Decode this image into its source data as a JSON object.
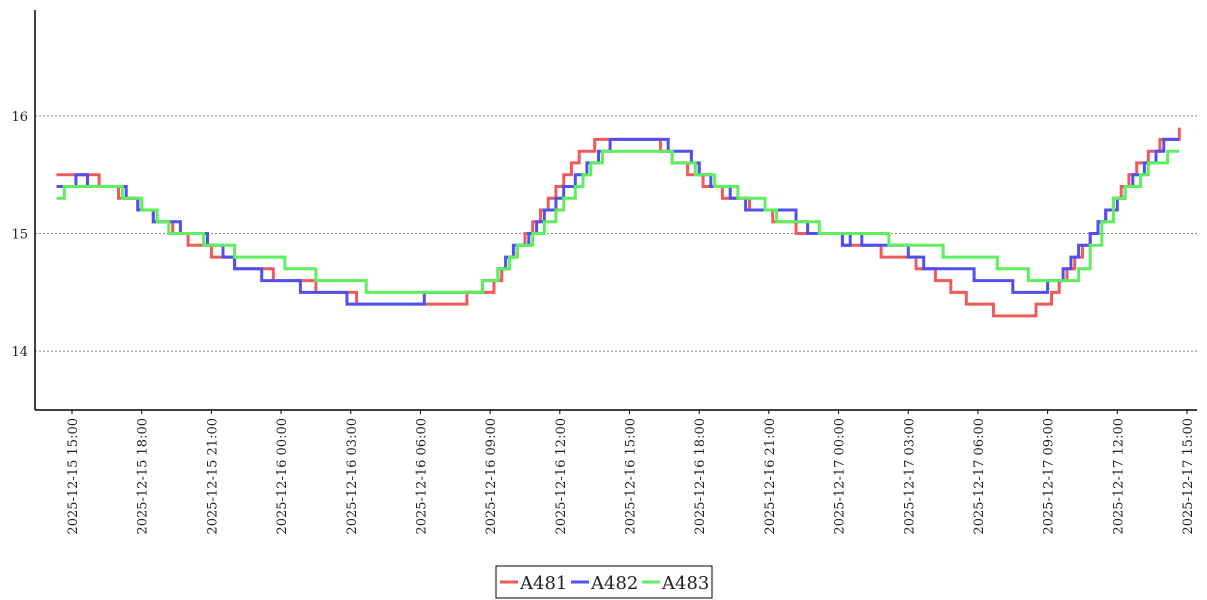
{
  "chart_data": {
    "type": "line",
    "step": true,
    "title": "",
    "xlabel": "",
    "ylabel": "",
    "ylim": [
      13.5,
      16.9
    ],
    "y_ticks": [
      14,
      15,
      16
    ],
    "y_tick_labels": [
      "14",
      "15",
      "16"
    ],
    "grid": "horizontal-dotted",
    "x_ticks": [
      "2025-12-15 15:00",
      "2025-12-15 18:00",
      "2025-12-15 21:00",
      "2025-12-16 00:00",
      "2025-12-16 03:00",
      "2025-12-16 06:00",
      "2025-12-16 09:00",
      "2025-12-16 12:00",
      "2025-12-16 15:00",
      "2025-12-16 18:00",
      "2025-12-16 21:00",
      "2025-12-17 00:00",
      "2025-12-17 03:00",
      "2025-12-17 06:00",
      "2025-12-17 09:00",
      "2025-12-17 12:00",
      "2025-12-17 15:00"
    ],
    "legend_position": "bottom-center",
    "series": [
      {
        "name": "A481",
        "color": "#f05a5a",
        "points": [
          [
            "2025-12-15 14:20",
            15.5
          ],
          [
            "2025-12-15 16:10",
            15.4
          ],
          [
            "2025-12-15 17:00",
            15.3
          ],
          [
            "2025-12-15 17:50",
            15.2
          ],
          [
            "2025-12-15 18:30",
            15.1
          ],
          [
            "2025-12-15 19:20",
            15.0
          ],
          [
            "2025-12-15 20:00",
            14.9
          ],
          [
            "2025-12-15 21:00",
            14.8
          ],
          [
            "2025-12-15 22:00",
            14.7
          ],
          [
            "2025-12-15 23:40",
            14.6
          ],
          [
            "2025-12-16 01:30",
            14.5
          ],
          [
            "2025-12-16 03:15",
            14.4
          ],
          [
            "2025-12-16 08:00",
            14.5
          ],
          [
            "2025-12-16 09:10",
            14.6
          ],
          [
            "2025-12-16 09:30",
            14.7
          ],
          [
            "2025-12-16 09:50",
            14.8
          ],
          [
            "2025-12-16 10:10",
            14.9
          ],
          [
            "2025-12-16 10:30",
            15.0
          ],
          [
            "2025-12-16 10:50",
            15.1
          ],
          [
            "2025-12-16 11:10",
            15.2
          ],
          [
            "2025-12-16 11:30",
            15.3
          ],
          [
            "2025-12-16 11:50",
            15.4
          ],
          [
            "2025-12-16 12:10",
            15.5
          ],
          [
            "2025-12-16 12:30",
            15.6
          ],
          [
            "2025-12-16 12:50",
            15.7
          ],
          [
            "2025-12-16 13:30",
            15.8
          ],
          [
            "2025-12-16 16:20",
            15.7
          ],
          [
            "2025-12-16 16:50",
            15.6
          ],
          [
            "2025-12-16 17:30",
            15.5
          ],
          [
            "2025-12-16 18:10",
            15.4
          ],
          [
            "2025-12-16 19:00",
            15.3
          ],
          [
            "2025-12-16 20:10",
            15.2
          ],
          [
            "2025-12-16 21:10",
            15.1
          ],
          [
            "2025-12-16 22:10",
            15.0
          ],
          [
            "2025-12-17 00:10",
            14.9
          ],
          [
            "2025-12-17 01:50",
            14.8
          ],
          [
            "2025-12-17 03:20",
            14.7
          ],
          [
            "2025-12-17 04:10",
            14.6
          ],
          [
            "2025-12-17 04:50",
            14.5
          ],
          [
            "2025-12-17 05:30",
            14.4
          ],
          [
            "2025-12-17 06:40",
            14.3
          ],
          [
            "2025-12-17 08:30",
            14.4
          ],
          [
            "2025-12-17 09:10",
            14.5
          ],
          [
            "2025-12-17 09:30",
            14.6
          ],
          [
            "2025-12-17 09:50",
            14.7
          ],
          [
            "2025-12-17 10:10",
            14.8
          ],
          [
            "2025-12-17 10:30",
            14.9
          ],
          [
            "2025-12-17 10:50",
            15.0
          ],
          [
            "2025-12-17 11:10",
            15.1
          ],
          [
            "2025-12-17 11:30",
            15.2
          ],
          [
            "2025-12-17 11:50",
            15.3
          ],
          [
            "2025-12-17 12:10",
            15.4
          ],
          [
            "2025-12-17 12:30",
            15.5
          ],
          [
            "2025-12-17 12:50",
            15.6
          ],
          [
            "2025-12-17 13:20",
            15.7
          ],
          [
            "2025-12-17 13:50",
            15.8
          ],
          [
            "2025-12-17 14:40",
            15.9
          ]
        ]
      },
      {
        "name": "A482",
        "color": "#5050f0",
        "points": [
          [
            "2025-12-15 14:20",
            15.4
          ],
          [
            "2025-12-15 15:10",
            15.5
          ],
          [
            "2025-12-15 15:40",
            15.4
          ],
          [
            "2025-12-15 17:20",
            15.3
          ],
          [
            "2025-12-15 17:50",
            15.2
          ],
          [
            "2025-12-15 18:30",
            15.1
          ],
          [
            "2025-12-15 19:40",
            15.0
          ],
          [
            "2025-12-15 20:50",
            14.9
          ],
          [
            "2025-12-15 21:30",
            14.8
          ],
          [
            "2025-12-15 22:00",
            14.7
          ],
          [
            "2025-12-15 23:10",
            14.6
          ],
          [
            "2025-12-16 00:50",
            14.5
          ],
          [
            "2025-12-16 02:50",
            14.4
          ],
          [
            "2025-12-16 06:10",
            14.5
          ],
          [
            "2025-12-16 08:40",
            14.6
          ],
          [
            "2025-12-16 09:20",
            14.7
          ],
          [
            "2025-12-16 09:40",
            14.8
          ],
          [
            "2025-12-16 10:00",
            14.9
          ],
          [
            "2025-12-16 10:40",
            15.0
          ],
          [
            "2025-12-16 11:00",
            15.1
          ],
          [
            "2025-12-16 11:20",
            15.2
          ],
          [
            "2025-12-16 11:50",
            15.3
          ],
          [
            "2025-12-16 12:10",
            15.4
          ],
          [
            "2025-12-16 12:40",
            15.5
          ],
          [
            "2025-12-16 13:10",
            15.6
          ],
          [
            "2025-12-16 13:40",
            15.7
          ],
          [
            "2025-12-16 14:10",
            15.8
          ],
          [
            "2025-12-16 16:40",
            15.7
          ],
          [
            "2025-12-16 17:40",
            15.6
          ],
          [
            "2025-12-16 18:00",
            15.5
          ],
          [
            "2025-12-16 18:30",
            15.4
          ],
          [
            "2025-12-16 19:20",
            15.3
          ],
          [
            "2025-12-16 20:00",
            15.2
          ],
          [
            "2025-12-16 22:10",
            15.1
          ],
          [
            "2025-12-16 22:40",
            15.0
          ],
          [
            "2025-12-17 00:10",
            14.9
          ],
          [
            "2025-12-17 00:30",
            15.0
          ],
          [
            "2025-12-17 01:00",
            14.9
          ],
          [
            "2025-12-17 01:50",
            14.9
          ],
          [
            "2025-12-17 02:00",
            14.9
          ],
          [
            "2025-12-17 02:50",
            14.9
          ],
          [
            "2025-12-17 03:00",
            14.8
          ],
          [
            "2025-12-17 03:40",
            14.7
          ],
          [
            "2025-12-17 05:50",
            14.6
          ],
          [
            "2025-12-17 07:30",
            14.5
          ],
          [
            "2025-12-17 09:00",
            14.6
          ],
          [
            "2025-12-17 09:40",
            14.7
          ],
          [
            "2025-12-17 10:00",
            14.8
          ],
          [
            "2025-12-17 10:20",
            14.9
          ],
          [
            "2025-12-17 10:50",
            15.0
          ],
          [
            "2025-12-17 11:10",
            15.1
          ],
          [
            "2025-12-17 11:30",
            15.2
          ],
          [
            "2025-12-17 12:00",
            15.3
          ],
          [
            "2025-12-17 12:20",
            15.4
          ],
          [
            "2025-12-17 12:40",
            15.5
          ],
          [
            "2025-12-17 13:10",
            15.6
          ],
          [
            "2025-12-17 13:40",
            15.7
          ],
          [
            "2025-12-17 14:00",
            15.8
          ],
          [
            "2025-12-17 14:40",
            15.8
          ]
        ]
      },
      {
        "name": "A483",
        "color": "#5cf05c",
        "points": [
          [
            "2025-12-15 14:20",
            15.3
          ],
          [
            "2025-12-15 14:40",
            15.4
          ],
          [
            "2025-12-15 17:10",
            15.3
          ],
          [
            "2025-12-15 18:00",
            15.2
          ],
          [
            "2025-12-15 18:40",
            15.1
          ],
          [
            "2025-12-15 19:10",
            15.0
          ],
          [
            "2025-12-15 20:40",
            14.9
          ],
          [
            "2025-12-15 22:00",
            14.8
          ],
          [
            "2025-12-16 00:10",
            14.7
          ],
          [
            "2025-12-16 01:30",
            14.6
          ],
          [
            "2025-12-16 03:40",
            14.5
          ],
          [
            "2025-12-16 08:40",
            14.6
          ],
          [
            "2025-12-16 09:20",
            14.7
          ],
          [
            "2025-12-16 09:50",
            14.8
          ],
          [
            "2025-12-16 10:10",
            14.9
          ],
          [
            "2025-12-16 10:50",
            15.0
          ],
          [
            "2025-12-16 11:20",
            15.1
          ],
          [
            "2025-12-16 11:50",
            15.2
          ],
          [
            "2025-12-16 12:10",
            15.3
          ],
          [
            "2025-12-16 12:40",
            15.4
          ],
          [
            "2025-12-16 13:00",
            15.5
          ],
          [
            "2025-12-16 13:20",
            15.6
          ],
          [
            "2025-12-16 13:50",
            15.7
          ],
          [
            "2025-12-16 16:50",
            15.6
          ],
          [
            "2025-12-16 17:50",
            15.5
          ],
          [
            "2025-12-16 18:40",
            15.4
          ],
          [
            "2025-12-16 19:40",
            15.3
          ],
          [
            "2025-12-16 20:50",
            15.2
          ],
          [
            "2025-12-16 21:20",
            15.1
          ],
          [
            "2025-12-16 23:10",
            15.0
          ],
          [
            "2025-12-17 02:10",
            14.9
          ],
          [
            "2025-12-17 04:30",
            14.8
          ],
          [
            "2025-12-17 06:50",
            14.7
          ],
          [
            "2025-12-17 08:10",
            14.6
          ],
          [
            "2025-12-17 10:20",
            14.7
          ],
          [
            "2025-12-17 10:50",
            14.9
          ],
          [
            "2025-12-17 11:20",
            15.1
          ],
          [
            "2025-12-17 11:50",
            15.3
          ],
          [
            "2025-12-17 12:20",
            15.4
          ],
          [
            "2025-12-17 13:00",
            15.5
          ],
          [
            "2025-12-17 13:20",
            15.6
          ],
          [
            "2025-12-17 14:10",
            15.7
          ],
          [
            "2025-12-17 14:40",
            15.7
          ]
        ]
      }
    ]
  }
}
